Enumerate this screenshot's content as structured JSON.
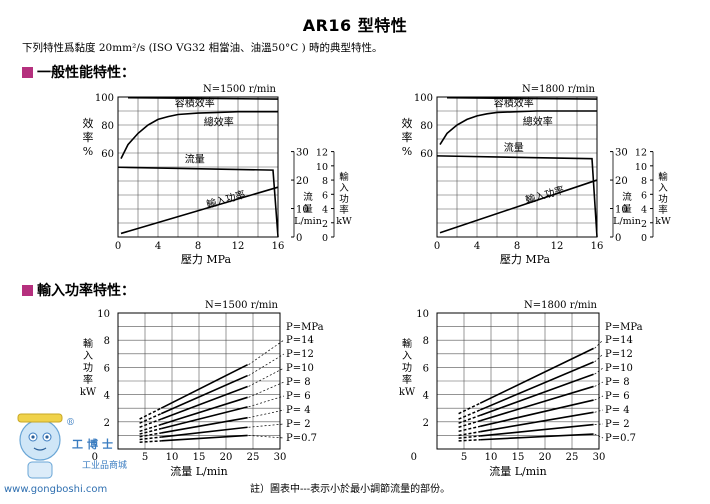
{
  "title": "AR16 型特性",
  "intro": "下列特性爲黏度 20mm²/s (ISO VG32 相當油、油溫50°C ) 時的典型特性。",
  "sections": {
    "general": "一般性能特性：",
    "power": "輸入功率特性："
  },
  "footnote": "註）圖表中---表示小於最小調節流量的部份。",
  "watermark": {
    "name": "工博士",
    "sub": "工业品商城",
    "url": "www.gongboshi.com",
    "registered": "®"
  },
  "labels": {
    "efficiency_axis": [
      "效",
      "率",
      "%"
    ],
    "flow_axis": [
      "流",
      "量",
      "L/min"
    ],
    "power_kw_axis": [
      "輸",
      "入",
      "功",
      "率",
      "kW"
    ],
    "power_axis_left": [
      "輸",
      "入",
      "功",
      "率",
      "kW"
    ]
  },
  "chart_data": [
    {
      "type": "line",
      "subtitle": "N=1500 r/min",
      "xlabel": "壓力 MPa",
      "xlim": [
        0,
        16
      ],
      "xticks": [
        0,
        4,
        8,
        12,
        16
      ],
      "xtick_labels": [
        "0",
        "4",
        "8",
        "12",
        "16"
      ],
      "ylim": [
        0,
        100
      ],
      "yticks": [
        60,
        80,
        100
      ],
      "ytick_labels": [
        "60",
        "80",
        "100"
      ],
      "flow_axis": {
        "ylim": [
          0,
          30
        ],
        "ticks": [
          0,
          10,
          20,
          30
        ],
        "tick_labels": [
          "0",
          "10",
          "20",
          "30"
        ]
      },
      "power_axis": {
        "ylim": [
          0,
          12
        ],
        "ticks": [
          0,
          2,
          4,
          6,
          8,
          10,
          12
        ],
        "tick_labels": [
          "0",
          "2",
          "4",
          "6",
          "8",
          "10",
          "12"
        ]
      },
      "series": [
        {
          "name": "容積效率",
          "x": [
            1,
            16
          ],
          "y": [
            99.5,
            98.5
          ],
          "axis": "efficiency"
        },
        {
          "name": "總效率",
          "x": [
            0.3,
            1,
            2,
            3,
            4,
            5,
            6,
            8,
            10,
            12,
            14,
            16
          ],
          "y": [
            56,
            66,
            74,
            80,
            84,
            86,
            87.5,
            88.5,
            89,
            89.5,
            89.5,
            89.5
          ],
          "axis": "efficiency"
        },
        {
          "name": "流量",
          "x": [
            0,
            15.5,
            16
          ],
          "y": [
            24.5,
            23.5,
            0
          ],
          "axis": "flow"
        },
        {
          "name": "輸入功率",
          "x": [
            0.3,
            16
          ],
          "y": [
            0.5,
            7
          ],
          "axis": "power"
        }
      ]
    },
    {
      "type": "line",
      "subtitle": "N=1800 r/min",
      "xlabel": "壓力 MPa",
      "xlim": [
        0,
        16
      ],
      "xticks": [
        0,
        4,
        8,
        12,
        16
      ],
      "xtick_labels": [
        "0",
        "4",
        "8",
        "12",
        "16"
      ],
      "ylim": [
        0,
        100
      ],
      "yticks": [
        60,
        80,
        100
      ],
      "ytick_labels": [
        "60",
        "80",
        "100"
      ],
      "flow_axis": {
        "ylim": [
          0,
          30
        ],
        "ticks": [
          0,
          10,
          20,
          30
        ],
        "tick_labels": [
          "0",
          "10",
          "20",
          "30"
        ]
      },
      "power_axis": {
        "ylim": [
          0,
          12
        ],
        "ticks": [
          0,
          2,
          4,
          6,
          8,
          10,
          12
        ],
        "tick_labels": [
          "0",
          "2",
          "4",
          "6",
          "8",
          "10",
          "12"
        ]
      },
      "series": [
        {
          "name": "容積效率",
          "x": [
            1,
            16
          ],
          "y": [
            99.5,
            98.5
          ],
          "axis": "efficiency"
        },
        {
          "name": "總效率",
          "x": [
            0.3,
            1,
            2,
            3,
            4,
            5,
            6,
            8,
            10,
            12,
            14,
            16
          ],
          "y": [
            66,
            74,
            80,
            84,
            86.5,
            88,
            89,
            89.5,
            90,
            90,
            90,
            90
          ],
          "axis": "efficiency"
        },
        {
          "name": "流量",
          "x": [
            0,
            15.5,
            16
          ],
          "y": [
            28.5,
            27.5,
            0
          ],
          "axis": "flow"
        },
        {
          "name": "輸入功率",
          "x": [
            0.3,
            16
          ],
          "y": [
            0.6,
            8
          ],
          "axis": "power"
        }
      ]
    },
    {
      "type": "line",
      "subtitle": "N=1500 r/min",
      "xlabel": "流量 L/min",
      "xlim": [
        0,
        30
      ],
      "xticks": [
        0,
        5,
        10,
        15,
        20,
        25,
        30
      ],
      "xtick_labels": [
        "0",
        "5",
        "10",
        "15",
        "20",
        "25",
        "30"
      ],
      "ylim": [
        0,
        10
      ],
      "yticks": [
        0,
        2,
        4,
        6,
        8,
        10
      ],
      "ytick_labels": [
        "0",
        "2",
        "4",
        "6",
        "8",
        "10"
      ],
      "legend_title": "P=MPa",
      "dashed_below_x": 8,
      "series": [
        {
          "name": "P=14",
          "x": [
            4,
            24
          ],
          "y": [
            2.2,
            6.2
          ]
        },
        {
          "name": "P=12",
          "x": [
            4,
            24
          ],
          "y": [
            1.9,
            5.4
          ]
        },
        {
          "name": "P=10",
          "x": [
            4,
            24
          ],
          "y": [
            1.6,
            4.6
          ]
        },
        {
          "name": "P= 8",
          "x": [
            4,
            24
          ],
          "y": [
            1.3,
            3.8
          ]
        },
        {
          "name": "P= 6",
          "x": [
            4,
            24
          ],
          "y": [
            1.1,
            3.1
          ]
        },
        {
          "name": "P= 4",
          "x": [
            4,
            24
          ],
          "y": [
            0.9,
            2.3
          ]
        },
        {
          "name": "P= 2",
          "x": [
            4,
            24
          ],
          "y": [
            0.7,
            1.6
          ]
        },
        {
          "name": "P=0.7",
          "x": [
            4,
            24
          ],
          "y": [
            0.5,
            1.0
          ]
        }
      ]
    },
    {
      "type": "line",
      "subtitle": "N=1800 r/min",
      "xlabel": "流量 L/min",
      "xlim": [
        0,
        30
      ],
      "xticks": [
        0,
        5,
        10,
        15,
        20,
        25,
        30
      ],
      "xtick_labels": [
        "0",
        "5",
        "10",
        "15",
        "20",
        "25",
        "30"
      ],
      "ylim": [
        0,
        10
      ],
      "yticks": [
        0,
        2,
        4,
        6,
        8,
        10
      ],
      "ytick_labels": [
        "0",
        "2",
        "4",
        "6",
        "8",
        "10"
      ],
      "legend_title": "P=MPa",
      "dashed_below_x": 8,
      "series": [
        {
          "name": "P=14",
          "x": [
            4,
            29
          ],
          "y": [
            2.6,
            7.4
          ]
        },
        {
          "name": "P=12",
          "x": [
            4,
            29
          ],
          "y": [
            2.2,
            6.4
          ]
        },
        {
          "name": "P=10",
          "x": [
            4,
            29
          ],
          "y": [
            1.9,
            5.5
          ]
        },
        {
          "name": "P= 8",
          "x": [
            4,
            29
          ],
          "y": [
            1.6,
            4.6
          ]
        },
        {
          "name": "P= 6",
          "x": [
            4,
            29
          ],
          "y": [
            1.3,
            3.6
          ]
        },
        {
          "name": "P= 4",
          "x": [
            4,
            29
          ],
          "y": [
            1.0,
            2.7
          ]
        },
        {
          "name": "P= 2",
          "x": [
            4,
            29
          ],
          "y": [
            0.8,
            1.8
          ]
        },
        {
          "name": "P=0.7",
          "x": [
            4,
            29
          ],
          "y": [
            0.6,
            1.1
          ]
        }
      ]
    }
  ]
}
